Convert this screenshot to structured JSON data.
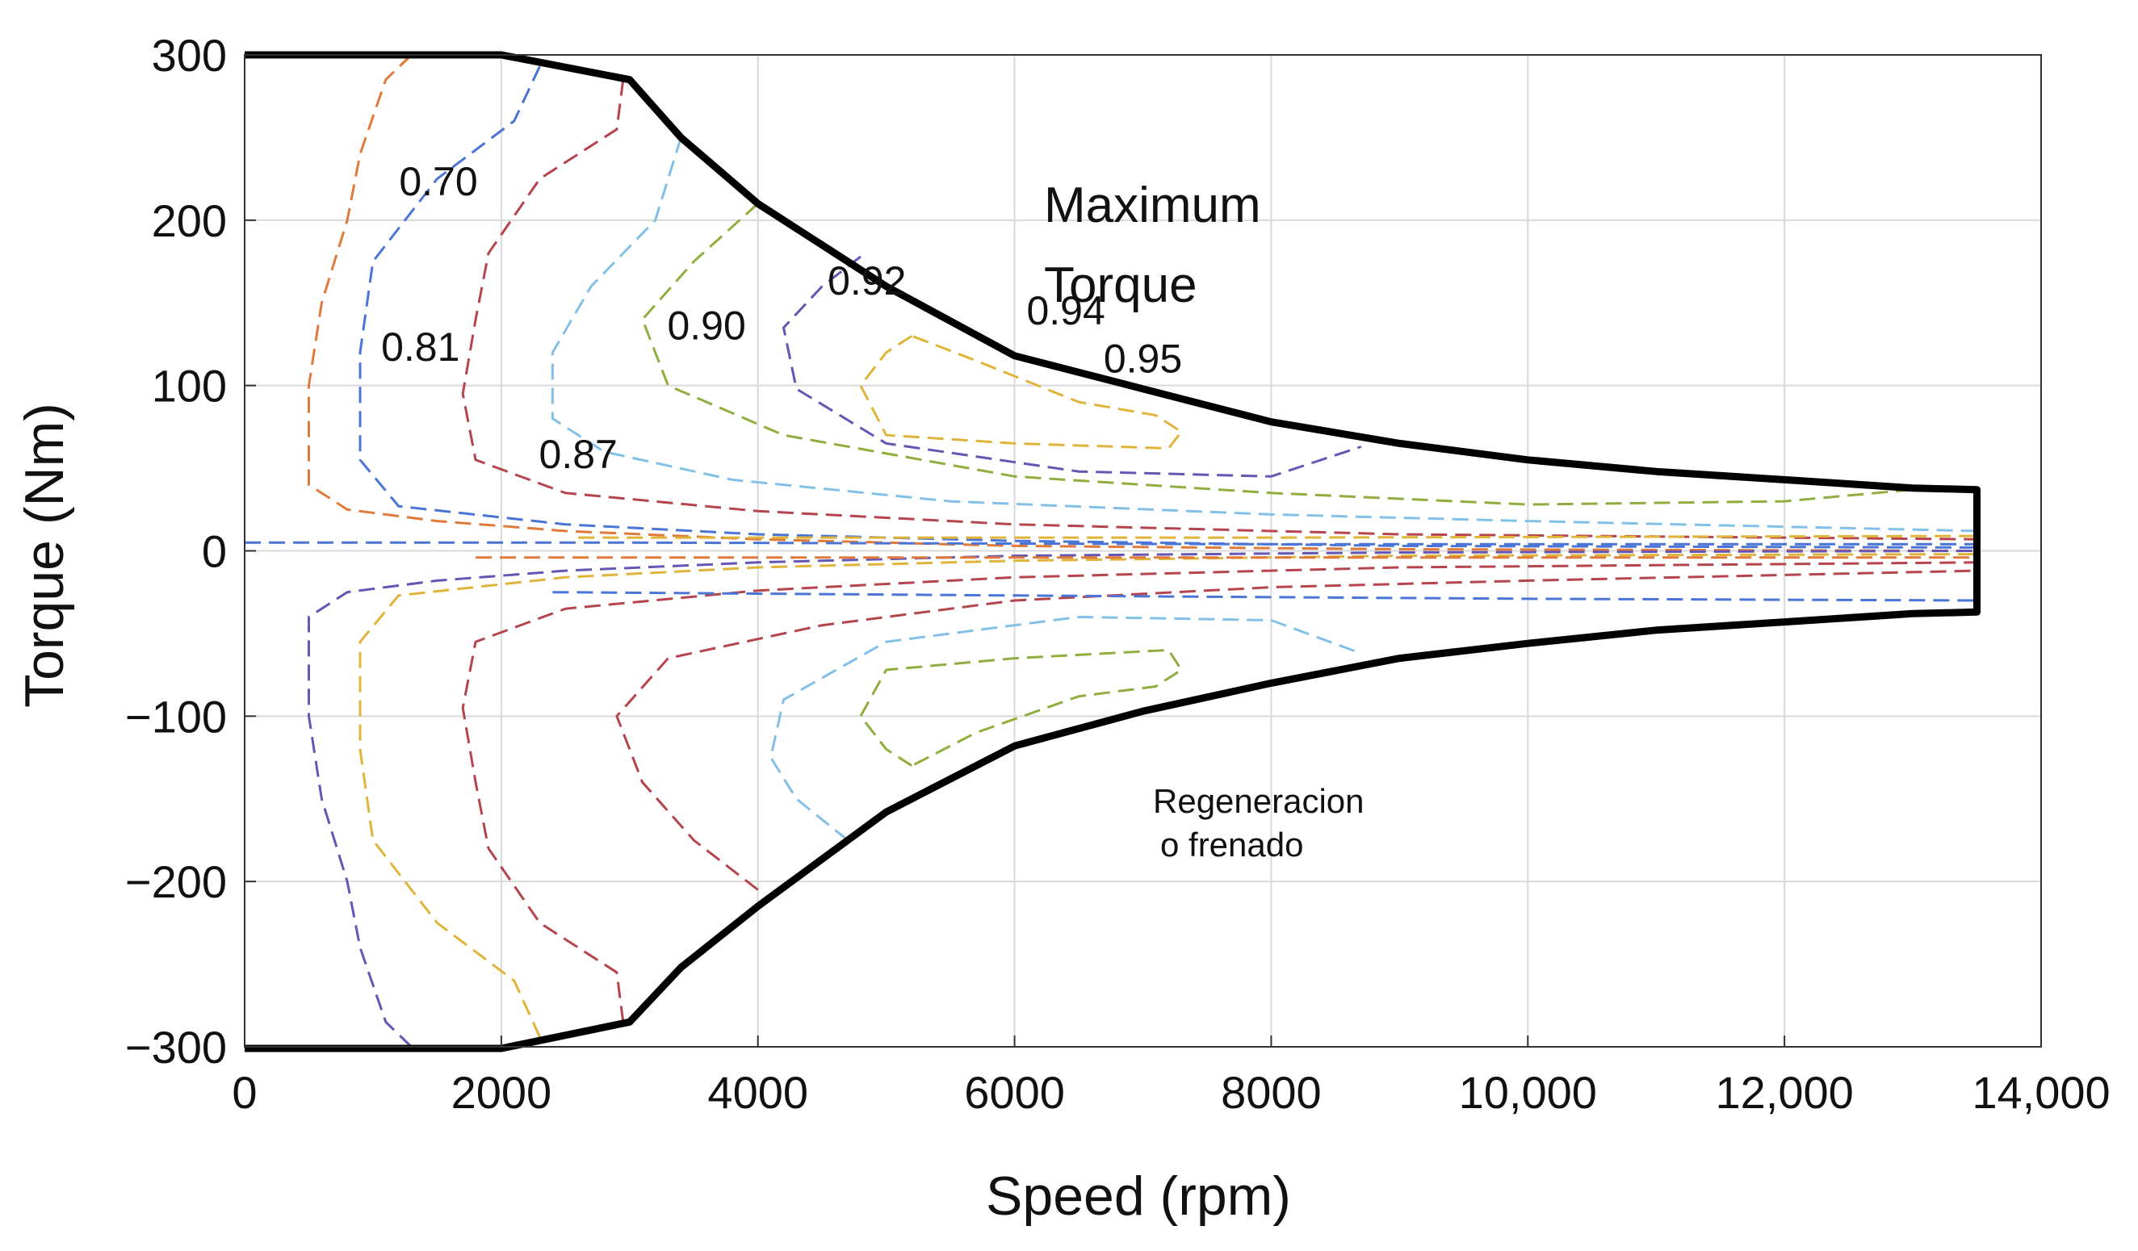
{
  "chart_data": {
    "type": "line",
    "title": "",
    "xlabel": "Speed (rpm)",
    "ylabel": "Torque (Nm)",
    "xlim": [
      0,
      14000
    ],
    "ylim": [
      -300,
      300
    ],
    "grid": true,
    "legend": "none",
    "x_ticks": [
      {
        "value": 0,
        "label": "0"
      },
      {
        "value": 2000,
        "label": "2000"
      },
      {
        "value": 4000,
        "label": "4000"
      },
      {
        "value": 6000,
        "label": "6000"
      },
      {
        "value": 8000,
        "label": "8000"
      },
      {
        "value": 10000,
        "label": "10,000"
      },
      {
        "value": 12000,
        "label": "12,000"
      },
      {
        "value": 14000,
        "label": "14,000"
      }
    ],
    "y_ticks": [
      {
        "value": 300,
        "label": "300"
      },
      {
        "value": 200,
        "label": "200"
      },
      {
        "value": 100,
        "label": "100"
      },
      {
        "value": 0,
        "label": "0"
      },
      {
        "value": -100,
        "label": "−100"
      },
      {
        "value": -200,
        "label": "−200"
      },
      {
        "value": -300,
        "label": "−300"
      }
    ],
    "envelope": {
      "color": "#000000",
      "points": [
        [
          0,
          300
        ],
        [
          2000,
          300
        ],
        [
          3000,
          285
        ],
        [
          3400,
          250
        ],
        [
          4000,
          210
        ],
        [
          5000,
          160
        ],
        [
          6000,
          118
        ],
        [
          7000,
          98
        ],
        [
          8000,
          78
        ],
        [
          9000,
          65
        ],
        [
          10000,
          55
        ],
        [
          11000,
          48
        ],
        [
          12000,
          43
        ],
        [
          13000,
          38
        ],
        [
          13500,
          37
        ],
        [
          13500,
          -37
        ],
        [
          13000,
          -38
        ],
        [
          12000,
          -43
        ],
        [
          11000,
          -48
        ],
        [
          10000,
          -56
        ],
        [
          9000,
          -65
        ],
        [
          8000,
          -80
        ],
        [
          7000,
          -97
        ],
        [
          6000,
          -118
        ],
        [
          5000,
          -158
        ],
        [
          4000,
          -215
        ],
        [
          3400,
          -252
        ],
        [
          3000,
          -285
        ],
        [
          2000,
          -301
        ],
        [
          0,
          -301
        ]
      ]
    },
    "contours": [
      {
        "label": "0.70",
        "color": "#e07a3a",
        "points": [
          [
            1300,
            300
          ],
          [
            1100,
            285
          ],
          [
            900,
            240
          ],
          [
            800,
            200
          ],
          [
            600,
            150
          ],
          [
            500,
            100
          ],
          [
            500,
            40
          ],
          [
            800,
            25
          ],
          [
            1500,
            18
          ],
          [
            2500,
            12
          ],
          [
            4000,
            7
          ],
          [
            6000,
            3
          ],
          [
            9000,
            1
          ],
          [
            13500,
            0
          ]
        ]
      },
      {
        "label": "0.81",
        "color": "#4a74d6",
        "points": [
          [
            2300,
            293
          ],
          [
            2100,
            260
          ],
          [
            1500,
            225
          ],
          [
            1000,
            175
          ],
          [
            900,
            120
          ],
          [
            900,
            55
          ],
          [
            1200,
            27
          ],
          [
            2500,
            16
          ],
          [
            4000,
            10
          ],
          [
            6000,
            6
          ],
          [
            9000,
            3
          ],
          [
            13500,
            2
          ]
        ]
      },
      {
        "label": "0.87",
        "color": "#b5444d",
        "points": [
          [
            2950,
            285
          ],
          [
            2900,
            255
          ],
          [
            2300,
            225
          ],
          [
            1900,
            180
          ],
          [
            1800,
            140
          ],
          [
            1700,
            95
          ],
          [
            1800,
            55
          ],
          [
            2500,
            35
          ],
          [
            4000,
            24
          ],
          [
            6000,
            16
          ],
          [
            9000,
            10
          ],
          [
            13500,
            7
          ]
        ]
      },
      {
        "label": "0.90",
        "color": "#82c0e8",
        "points": [
          [
            3400,
            250
          ],
          [
            3200,
            200
          ],
          [
            2700,
            160
          ],
          [
            2400,
            120
          ],
          [
            2400,
            80
          ],
          [
            2800,
            60
          ],
          [
            3800,
            43
          ],
          [
            5500,
            30
          ],
          [
            8000,
            22
          ],
          [
            10000,
            18
          ],
          [
            13500,
            12
          ]
        ]
      },
      {
        "label": "0.92",
        "color": "#8fae3d",
        "points": [
          [
            4000,
            210
          ],
          [
            3500,
            175
          ],
          [
            3100,
            140
          ],
          [
            3300,
            100
          ],
          [
            4200,
            70
          ],
          [
            6000,
            45
          ],
          [
            8000,
            35
          ],
          [
            10000,
            28
          ],
          [
            12000,
            30
          ],
          [
            13000,
            37
          ]
        ]
      },
      {
        "label": "0.94",
        "color": "#6555b5",
        "points": [
          [
            4800,
            178
          ],
          [
            4500,
            160
          ],
          [
            4200,
            135
          ],
          [
            4300,
            98
          ],
          [
            5000,
            65
          ],
          [
            6500,
            48
          ],
          [
            8000,
            45
          ],
          [
            8700,
            63
          ]
        ]
      },
      {
        "label": "0.95",
        "color": "#e0b43a",
        "points": [
          [
            5200,
            130
          ],
          [
            5000,
            120
          ],
          [
            4800,
            100
          ],
          [
            5000,
            70
          ],
          [
            6000,
            65
          ],
          [
            7200,
            62
          ],
          [
            7300,
            72
          ],
          [
            7100,
            82
          ],
          [
            6500,
            90
          ],
          [
            5700,
            115
          ],
          [
            5200,
            130
          ]
        ]
      },
      {
        "label": "",
        "color": "#6555b5",
        "points": [
          [
            1300,
            -300
          ],
          [
            1100,
            -285
          ],
          [
            900,
            -240
          ],
          [
            800,
            -200
          ],
          [
            600,
            -150
          ],
          [
            500,
            -100
          ],
          [
            500,
            -40
          ],
          [
            800,
            -25
          ],
          [
            1500,
            -18
          ],
          [
            2500,
            -12
          ],
          [
            4000,
            -7
          ],
          [
            6000,
            -3
          ],
          [
            9000,
            -1
          ],
          [
            13500,
            0
          ]
        ]
      },
      {
        "label": "",
        "color": "#e0b43a",
        "points": [
          [
            2300,
            -294
          ],
          [
            2100,
            -260
          ],
          [
            1500,
            -225
          ],
          [
            1000,
            -175
          ],
          [
            900,
            -120
          ],
          [
            900,
            -55
          ],
          [
            1200,
            -27
          ],
          [
            2500,
            -16
          ],
          [
            4000,
            -10
          ],
          [
            6000,
            -6
          ],
          [
            9000,
            -3
          ],
          [
            13500,
            -2
          ]
        ]
      },
      {
        "label": "",
        "color": "#b5444d",
        "points": [
          [
            2950,
            -285
          ],
          [
            2900,
            -255
          ],
          [
            2300,
            -225
          ],
          [
            1900,
            -180
          ],
          [
            1800,
            -140
          ],
          [
            1700,
            -95
          ],
          [
            1800,
            -55
          ],
          [
            2500,
            -35
          ],
          [
            4000,
            -24
          ],
          [
            6000,
            -16
          ],
          [
            9000,
            -10
          ],
          [
            13500,
            -7
          ]
        ]
      },
      {
        "label": "",
        "color": "#b5444d",
        "points": [
          [
            4000,
            -205
          ],
          [
            3500,
            -175
          ],
          [
            3100,
            -140
          ],
          [
            2900,
            -100
          ],
          [
            3300,
            -65
          ],
          [
            4500,
            -45
          ],
          [
            6000,
            -30
          ],
          [
            8000,
            -22
          ],
          [
            10000,
            -18
          ],
          [
            13500,
            -12
          ]
        ]
      },
      {
        "label": "",
        "color": "#82c0e8",
        "points": [
          [
            4700,
            -175
          ],
          [
            4300,
            -150
          ],
          [
            4100,
            -125
          ],
          [
            4200,
            -90
          ],
          [
            5000,
            -55
          ],
          [
            6500,
            -40
          ],
          [
            8000,
            -42
          ],
          [
            8700,
            -62
          ]
        ]
      },
      {
        "label": "",
        "color": "#8fae3d",
        "points": [
          [
            5200,
            -130
          ],
          [
            5000,
            -120
          ],
          [
            4800,
            -100
          ],
          [
            5000,
            -72
          ],
          [
            6000,
            -65
          ],
          [
            7200,
            -60
          ],
          [
            7300,
            -72
          ],
          [
            7100,
            -82
          ],
          [
            6500,
            -88
          ],
          [
            5700,
            -110
          ],
          [
            5200,
            -130
          ]
        ]
      },
      {
        "label": "",
        "color": "#4a74d6",
        "points": [
          [
            0,
            5
          ],
          [
            3000,
            5
          ],
          [
            8000,
            4
          ],
          [
            13500,
            4
          ]
        ]
      },
      {
        "label": "",
        "color": "#e07a3a",
        "points": [
          [
            1800,
            -4
          ],
          [
            6000,
            -4
          ],
          [
            13500,
            -4
          ]
        ]
      },
      {
        "label": "",
        "color": "#e0b43a",
        "points": [
          [
            2600,
            8
          ],
          [
            8000,
            8
          ],
          [
            13500,
            9
          ]
        ]
      },
      {
        "label": "",
        "color": "#4a74d6",
        "points": [
          [
            2400,
            -25
          ],
          [
            6000,
            -27
          ],
          [
            10000,
            -29
          ],
          [
            13500,
            -30
          ]
        ]
      }
    ],
    "annotations": {
      "max_torque_line1": "Maximum",
      "max_torque_line2": "Torque",
      "regen_line1": "Regeneracion",
      "regen_line2": "o frenado"
    }
  }
}
